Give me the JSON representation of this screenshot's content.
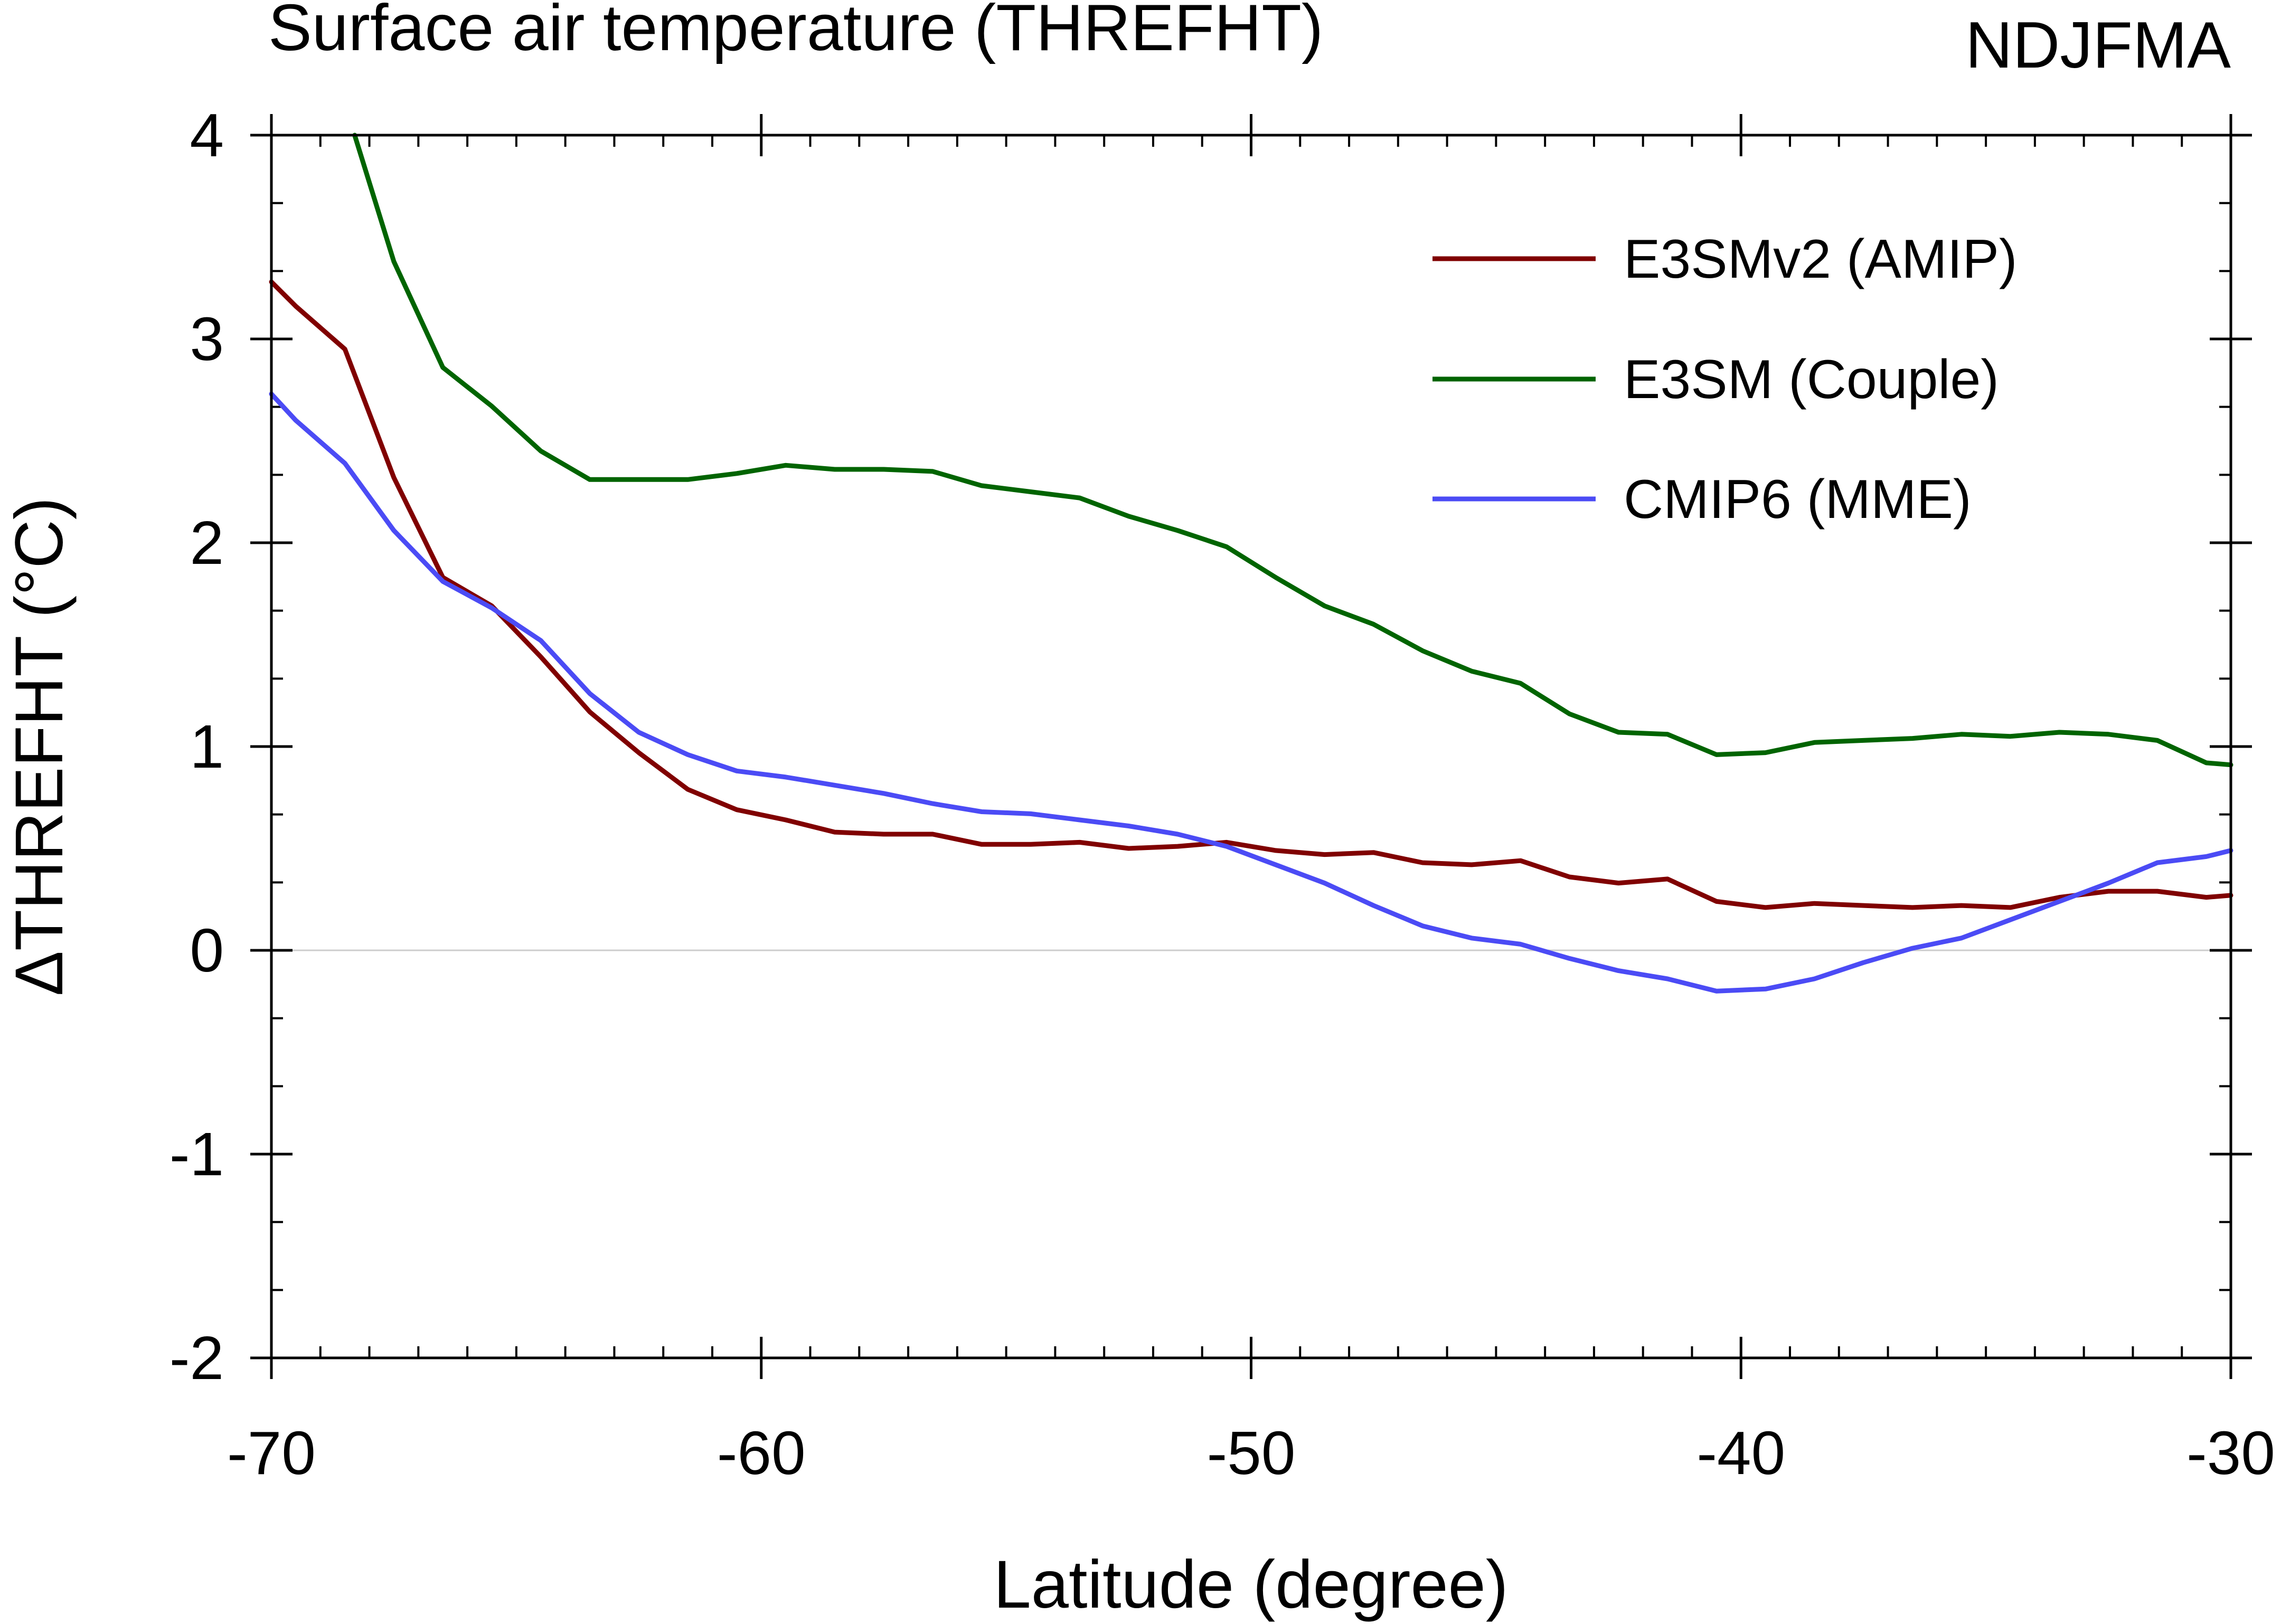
{
  "chart_data": {
    "type": "line",
    "title": "Surface air temperature (THREFHT)",
    "season": "NDJFMA",
    "xlabel": "Latitude (degree)",
    "ylabel": "ΔTHREFHT (°C)",
    "xlim": [
      -70,
      -30
    ],
    "ylim": [
      -2,
      4
    ],
    "x_ticks": [
      -70,
      -60,
      -50,
      -40,
      -30
    ],
    "x_tick_labels": [
      "-70",
      "-60",
      "-50",
      "-40",
      "-30"
    ],
    "y_ticks": [
      -2,
      -1,
      0,
      1,
      2,
      3,
      4
    ],
    "y_tick_labels": [
      "-2",
      "-1",
      "0",
      "1",
      "2",
      "3",
      "4"
    ],
    "x_minor_step": 1,
    "y_minor_step": 0.333,
    "zero_line": true,
    "legend_position": "top-right",
    "series": [
      {
        "name": "E3SMv2 (AMIP)",
        "color": "#800000",
        "x": [
          -70,
          -69.5,
          -68.5,
          -67.5,
          -66.5,
          -65.5,
          -64.5,
          -63.5,
          -62.5,
          -61.5,
          -60.5,
          -59.5,
          -58.5,
          -57.5,
          -56.5,
          -55.5,
          -54.5,
          -53.5,
          -52.5,
          -51.5,
          -50.5,
          -49.5,
          -48.5,
          -47.5,
          -46.5,
          -45.5,
          -44.5,
          -43.5,
          -42.5,
          -41.5,
          -40.5,
          -39.5,
          -38.5,
          -37.5,
          -36.5,
          -35.5,
          -34.5,
          -33.5,
          -32.5,
          -31.5,
          -30.5,
          -30
        ],
        "y": [
          3.28,
          3.16,
          2.95,
          2.32,
          1.83,
          1.69,
          1.44,
          1.17,
          0.97,
          0.79,
          0.69,
          0.64,
          0.58,
          0.57,
          0.57,
          0.52,
          0.52,
          0.53,
          0.5,
          0.51,
          0.53,
          0.49,
          0.47,
          0.48,
          0.43,
          0.42,
          0.44,
          0.36,
          0.33,
          0.35,
          0.24,
          0.21,
          0.23,
          0.22,
          0.21,
          0.22,
          0.21,
          0.26,
          0.29,
          0.29,
          0.26,
          0.27
        ]
      },
      {
        "name": "E3SM (Couple)",
        "color": "#006400",
        "x": [
          -68.3,
          -67.5,
          -66.5,
          -65.5,
          -64.5,
          -63.5,
          -62.5,
          -61.5,
          -60.5,
          -59.5,
          -58.5,
          -57.5,
          -56.5,
          -55.5,
          -54.5,
          -53.5,
          -52.5,
          -51.5,
          -50.5,
          -49.5,
          -48.5,
          -47.5,
          -46.5,
          -45.5,
          -44.5,
          -43.5,
          -42.5,
          -41.5,
          -40.5,
          -39.5,
          -38.5,
          -37.5,
          -36.5,
          -35.5,
          -34.5,
          -33.5,
          -32.5,
          -31.5,
          -30.5,
          -30
        ],
        "y": [
          4.0,
          3.38,
          2.86,
          2.67,
          2.45,
          2.31,
          2.31,
          2.31,
          2.34,
          2.38,
          2.36,
          2.36,
          2.35,
          2.28,
          2.25,
          2.22,
          2.13,
          2.06,
          1.98,
          1.83,
          1.69,
          1.6,
          1.47,
          1.37,
          1.31,
          1.16,
          1.07,
          1.06,
          0.96,
          0.97,
          1.02,
          1.03,
          1.04,
          1.06,
          1.05,
          1.07,
          1.06,
          1.03,
          0.92,
          0.91
        ]
      },
      {
        "name": "CMIP6 (MME)",
        "color": "#4B4BF5",
        "x": [
          -70,
          -69.5,
          -68.5,
          -67.5,
          -66.5,
          -65.5,
          -64.5,
          -63.5,
          -62.5,
          -61.5,
          -60.5,
          -59.5,
          -58.5,
          -57.5,
          -56.5,
          -55.5,
          -54.5,
          -53.5,
          -52.5,
          -51.5,
          -50.5,
          -49.5,
          -48.5,
          -47.5,
          -46.5,
          -45.5,
          -44.5,
          -43.5,
          -42.5,
          -41.5,
          -40.5,
          -39.5,
          -38.5,
          -37.5,
          -36.5,
          -35.5,
          -34.5,
          -33.5,
          -32.5,
          -31.5,
          -30.5,
          -30
        ],
        "y": [
          2.73,
          2.6,
          2.39,
          2.06,
          1.81,
          1.68,
          1.52,
          1.26,
          1.07,
          0.96,
          0.88,
          0.85,
          0.81,
          0.77,
          0.72,
          0.68,
          0.67,
          0.64,
          0.61,
          0.57,
          0.51,
          0.42,
          0.33,
          0.22,
          0.12,
          0.06,
          0.03,
          -0.04,
          -0.1,
          -0.14,
          -0.2,
          -0.19,
          -0.14,
          -0.06,
          0.01,
          0.06,
          0.15,
          0.24,
          0.33,
          0.43,
          0.46,
          0.49
        ]
      }
    ]
  }
}
